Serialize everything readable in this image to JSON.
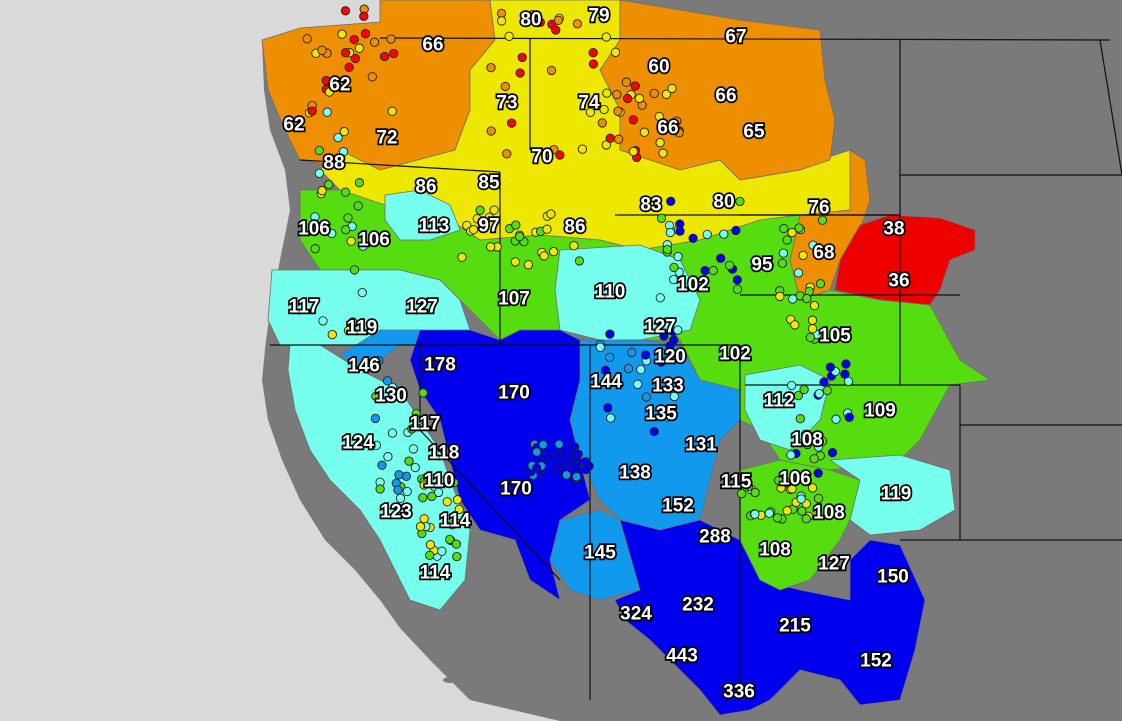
{
  "colors": {
    "ocean": "#d9d9d9",
    "land": "#7a7a7a",
    "lt50": "#ff0000",
    "50_69": "#ee8f00",
    "70_89": "#eee800",
    "90_109": "#55dd10",
    "110_129": "#77ffee",
    "130_149": "#1199ee",
    "ge150": "#0000ee"
  },
  "labels": [
    {
      "v": "80"
    },
    {
      "v": "79"
    },
    {
      "v": "67"
    },
    {
      "v": "66"
    },
    {
      "v": "60"
    },
    {
      "v": "62"
    },
    {
      "v": "73"
    },
    {
      "v": "74"
    },
    {
      "v": "66"
    },
    {
      "v": "62"
    },
    {
      "v": "72"
    },
    {
      "v": "66"
    },
    {
      "v": "65"
    },
    {
      "v": "70"
    },
    {
      "v": "88"
    },
    {
      "v": "86"
    },
    {
      "v": "85"
    },
    {
      "v": "80"
    },
    {
      "v": "83"
    },
    {
      "v": "76"
    },
    {
      "v": "106"
    },
    {
      "v": "113"
    },
    {
      "v": "97"
    },
    {
      "v": "86"
    },
    {
      "v": "38"
    },
    {
      "v": "106"
    },
    {
      "v": "95"
    },
    {
      "v": "68"
    },
    {
      "v": "102"
    },
    {
      "v": "36"
    },
    {
      "v": "117"
    },
    {
      "v": "127"
    },
    {
      "v": "107"
    },
    {
      "v": "110"
    },
    {
      "v": "119"
    },
    {
      "v": "127"
    },
    {
      "v": "105"
    },
    {
      "v": "146"
    },
    {
      "v": "178"
    },
    {
      "v": "120"
    },
    {
      "v": "102"
    },
    {
      "v": "144"
    },
    {
      "v": "170"
    },
    {
      "v": "133"
    },
    {
      "v": "130"
    },
    {
      "v": "112"
    },
    {
      "v": "109"
    },
    {
      "v": "135"
    },
    {
      "v": "117"
    },
    {
      "v": "131"
    },
    {
      "v": "124"
    },
    {
      "v": "118"
    },
    {
      "v": "108"
    },
    {
      "v": "138"
    },
    {
      "v": "110"
    },
    {
      "v": "115"
    },
    {
      "v": "106"
    },
    {
      "v": "170"
    },
    {
      "v": "119"
    },
    {
      "v": "123"
    },
    {
      "v": "152"
    },
    {
      "v": "108"
    },
    {
      "v": "114"
    },
    {
      "v": "288"
    },
    {
      "v": "145"
    },
    {
      "v": "108"
    },
    {
      "v": "127"
    },
    {
      "v": "150"
    },
    {
      "v": "114"
    },
    {
      "v": "324"
    },
    {
      "v": "232"
    },
    {
      "v": "215"
    },
    {
      "v": "443"
    },
    {
      "v": "152"
    },
    {
      "v": "336"
    }
  ]
}
